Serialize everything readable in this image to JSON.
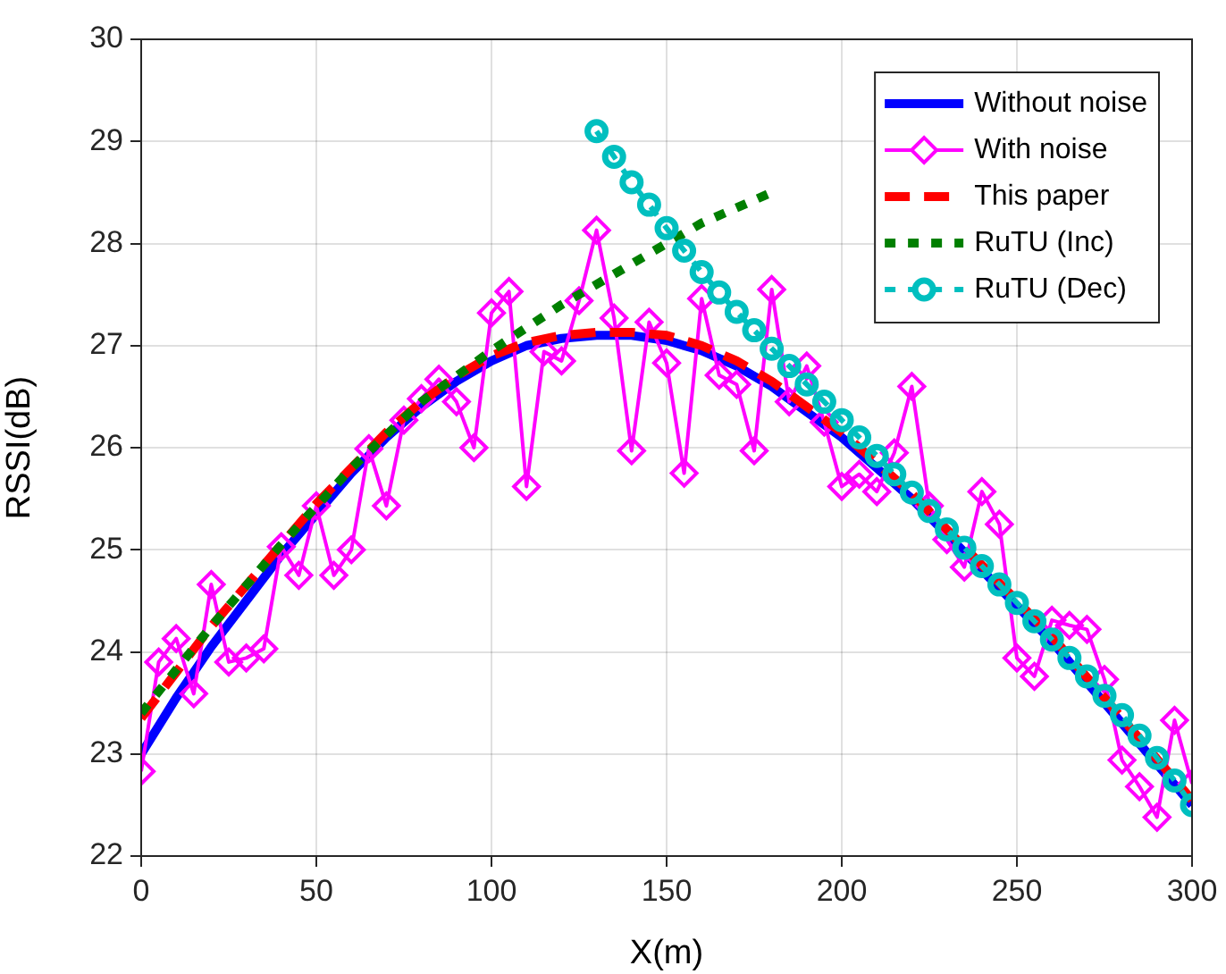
{
  "chart_data": {
    "type": "line",
    "xlabel": "X(m)",
    "ylabel": "RSSI(dB)",
    "xlim": [
      0,
      300
    ],
    "xticks": [
      0,
      50,
      100,
      150,
      200,
      250,
      300
    ],
    "ylim": [
      22,
      30
    ],
    "yticks": [
      22,
      23,
      24,
      25,
      26,
      27,
      28,
      29,
      30
    ],
    "grid": true,
    "legend": "top right",
    "series": [
      {
        "name": "Without noise",
        "color": "#0000ff",
        "line_style": "solid",
        "marker": "none",
        "x": [
          0,
          10,
          20,
          30,
          40,
          50,
          60,
          70,
          80,
          90,
          100,
          110,
          120,
          130,
          140,
          150,
          160,
          170,
          180,
          190,
          200,
          210,
          220,
          230,
          240,
          250,
          260,
          270,
          280,
          290,
          300
        ],
        "values": [
          23.0,
          23.55,
          24.05,
          24.5,
          24.95,
          25.35,
          25.75,
          26.1,
          26.4,
          26.65,
          26.85,
          27.0,
          27.07,
          27.1,
          27.1,
          27.05,
          26.95,
          26.8,
          26.6,
          26.35,
          26.1,
          25.8,
          25.5,
          25.15,
          24.8,
          24.45,
          24.1,
          23.7,
          23.3,
          22.9,
          22.5
        ]
      },
      {
        "name": "With noise",
        "color": "#ff00ff",
        "line_style": "solid",
        "marker": "diamond",
        "x": [
          0,
          5,
          10,
          15,
          20,
          25,
          30,
          35,
          40,
          45,
          50,
          55,
          60,
          65,
          70,
          75,
          80,
          85,
          90,
          95,
          100,
          105,
          110,
          115,
          120,
          125,
          130,
          135,
          140,
          145,
          150,
          155,
          160,
          165,
          170,
          175,
          180,
          185,
          190,
          195,
          200,
          205,
          210,
          215,
          220,
          225,
          230,
          235,
          240,
          245,
          250,
          255,
          260,
          265,
          270,
          275,
          280,
          285,
          290,
          295,
          300
        ],
        "values": [
          22.83,
          23.9,
          24.13,
          23.59,
          24.66,
          23.9,
          23.94,
          24.03,
          25.03,
          24.75,
          25.43,
          24.75,
          25.0,
          25.99,
          25.43,
          26.27,
          26.48,
          26.67,
          26.45,
          26.0,
          27.32,
          27.53,
          25.62,
          26.94,
          26.85,
          27.44,
          28.13,
          27.27,
          25.97,
          27.23,
          26.83,
          25.75,
          27.46,
          26.71,
          26.62,
          25.97,
          27.55,
          26.45,
          26.8,
          26.25,
          25.62,
          25.74,
          25.57,
          25.95,
          26.6,
          25.43,
          25.1,
          24.83,
          25.57,
          25.25,
          23.94,
          23.76,
          24.31,
          24.26,
          24.22,
          23.73,
          22.94,
          22.68,
          22.38,
          23.33,
          22.71
        ]
      },
      {
        "name": "This paper",
        "color": "#ff0000",
        "line_style": "dashed",
        "marker": "none",
        "x": [
          0,
          10,
          20,
          30,
          40,
          50,
          60,
          70,
          80,
          90,
          100,
          110,
          120,
          130,
          140,
          150,
          160,
          170,
          180,
          190,
          200,
          210,
          220,
          230,
          240,
          250,
          260,
          270,
          280,
          290,
          300
        ],
        "values": [
          23.35,
          23.8,
          24.25,
          24.65,
          25.05,
          25.45,
          25.8,
          26.15,
          26.45,
          26.7,
          26.9,
          27.03,
          27.1,
          27.13,
          27.13,
          27.1,
          27.0,
          26.85,
          26.65,
          26.4,
          26.15,
          25.85,
          25.55,
          25.2,
          24.85,
          24.5,
          24.15,
          23.75,
          23.35,
          22.95,
          22.55
        ]
      },
      {
        "name": "RuTU (Inc)",
        "color": "#007f00",
        "line_style": "dotted",
        "marker": "none",
        "x": [
          0,
          20,
          40,
          60,
          80,
          100,
          120,
          140,
          160,
          180
        ],
        "values": [
          23.4,
          24.25,
          25.05,
          25.8,
          26.45,
          26.95,
          27.4,
          27.8,
          28.2,
          28.5
        ]
      },
      {
        "name": "RuTU (Dec)",
        "color": "#00bfbf",
        "line_style": "dotted",
        "marker": "circle",
        "x": [
          130,
          135,
          140,
          145,
          150,
          155,
          160,
          165,
          170,
          175,
          180,
          185,
          190,
          195,
          200,
          205,
          210,
          215,
          220,
          225,
          230,
          235,
          240,
          245,
          250,
          255,
          260,
          265,
          270,
          275,
          280,
          285,
          290,
          295,
          300
        ],
        "values": [
          29.1,
          28.85,
          28.6,
          28.38,
          28.15,
          27.93,
          27.72,
          27.52,
          27.33,
          27.15,
          26.97,
          26.8,
          26.62,
          26.45,
          26.27,
          26.1,
          25.92,
          25.74,
          25.56,
          25.38,
          25.2,
          25.02,
          24.84,
          24.66,
          24.48,
          24.3,
          24.12,
          23.94,
          23.76,
          23.57,
          23.38,
          23.18,
          22.96,
          22.74,
          22.5
        ]
      }
    ]
  }
}
